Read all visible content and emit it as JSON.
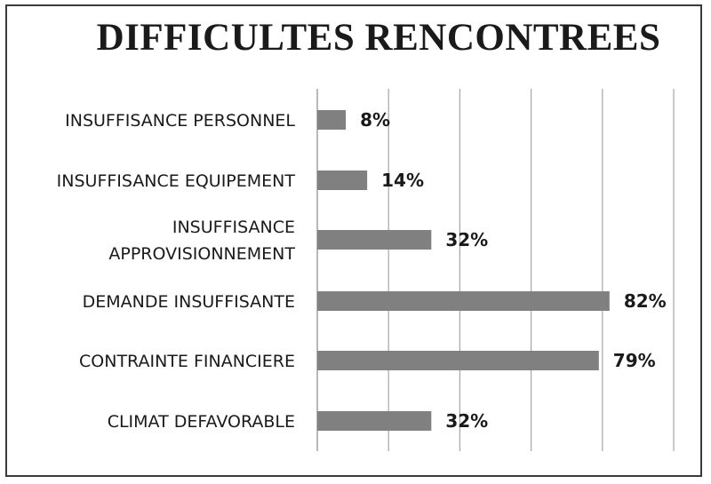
{
  "chart_data": {
    "type": "bar",
    "orientation": "horizontal",
    "title": "DIFFICULTES RENCONTREES",
    "categories": [
      "INSUFFISANCE PERSONNEL",
      "INSUFFISANCE EQUIPEMENT",
      "INSUFFISANCE APPROVISIONNEMENT",
      "DEMANDE INSUFFISANTE",
      "CONTRAINTE FINANCIERE",
      "CLIMAT DEFAVORABLE"
    ],
    "category_lines": [
      [
        "INSUFFISANCE PERSONNEL"
      ],
      [
        "INSUFFISANCE EQUIPEMENT"
      ],
      [
        "INSUFFISANCE",
        "APPROVISIONNEMENT"
      ],
      [
        "DEMANDE INSUFFISANTE"
      ],
      [
        "CONTRAINTE FINANCIERE"
      ],
      [
        "CLIMAT DEFAVORABLE"
      ]
    ],
    "values": [
      8,
      14,
      32,
      82,
      79,
      32
    ],
    "value_labels": [
      "8%",
      "14%",
      "32%",
      "82%",
      "79%",
      "32%"
    ],
    "xlim": [
      0,
      100
    ],
    "x_gridlines": [
      0,
      20,
      40,
      60,
      80,
      100
    ],
    "grid": true,
    "bar_color": "#808080",
    "grid_color": "#a6a6a6",
    "xlabel": "",
    "ylabel": ""
  }
}
